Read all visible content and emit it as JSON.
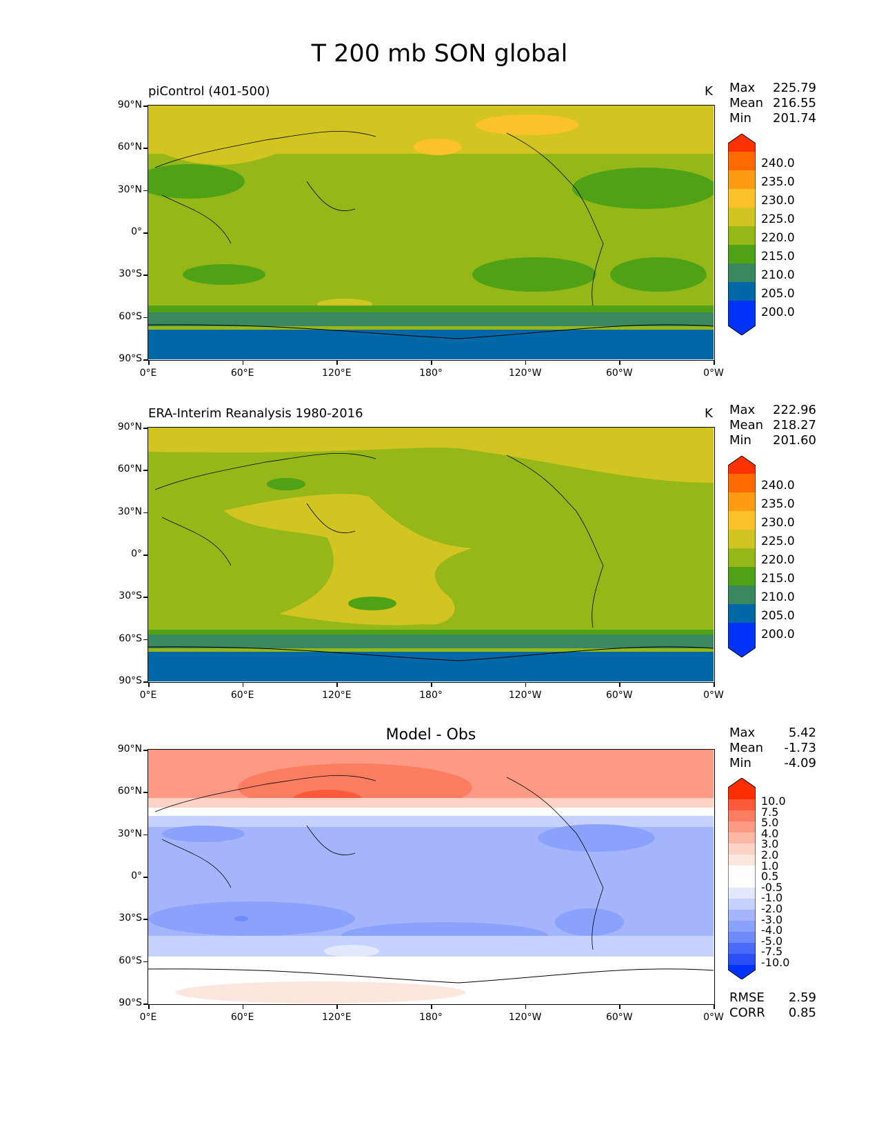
{
  "figure_title": "T 200 mb SON global",
  "lat_ticks": [
    "90°N",
    "60°N",
    "30°N",
    "0°",
    "30°S",
    "60°S",
    "90°S"
  ],
  "lon_ticks": [
    "0°E",
    "60°E",
    "120°E",
    "180°",
    "120°W",
    "60°W",
    "0°W"
  ],
  "panels": [
    {
      "id": "model",
      "title": "piControl (401-500)",
      "units": "K",
      "stats": [
        {
          "label": "Max",
          "value": "225.79"
        },
        {
          "label": "Mean",
          "value": "216.55"
        },
        {
          "label": "Min",
          "value": "201.74"
        }
      ]
    },
    {
      "id": "obs",
      "title": "ERA-Interim Reanalysis 1980-2016",
      "units": "K",
      "stats": [
        {
          "label": "Max",
          "value": "222.96"
        },
        {
          "label": "Mean",
          "value": "218.27"
        },
        {
          "label": "Min",
          "value": "201.60"
        }
      ]
    },
    {
      "id": "diff",
      "title": "Model - Obs",
      "units": "",
      "stats": [
        {
          "label": "Max",
          "value": "5.42"
        },
        {
          "label": "Mean",
          "value": "-1.73"
        },
        {
          "label": "Min",
          "value": "-4.09"
        }
      ],
      "metrics": [
        {
          "label": "RMSE",
          "value": "2.59"
        },
        {
          "label": "CORR",
          "value": "0.85"
        }
      ]
    }
  ],
  "colorbar_abs": {
    "labels": [
      "240.0",
      "235.0",
      "230.0",
      "225.0",
      "220.0",
      "215.0",
      "210.0",
      "205.0",
      "200.0"
    ],
    "colors": [
      "#fe3200",
      "#fe6a00",
      "#fe9b12",
      "#fbc22a",
      "#d2c522",
      "#95b818",
      "#4fa216",
      "#3a8760",
      "#0068a6",
      "#0032f8"
    ]
  },
  "colorbar_diff": {
    "labels": [
      "10.0",
      "7.5",
      "5.0",
      "4.0",
      "3.0",
      "2.0",
      "1.0",
      "0.5",
      "-0.5",
      "-1.0",
      "-2.0",
      "-3.0",
      "-4.0",
      "-5.0",
      "-7.5",
      "-10.0"
    ],
    "colors": [
      "#fe2e00",
      "#fd5a3c",
      "#fd7d63",
      "#fd9a85",
      "#fdb8a6",
      "#fdd3c6",
      "#fde6de",
      "#fefefe",
      "#ffffff",
      "#e2e8fe",
      "#c6d2fe",
      "#a4b5fd",
      "#8ba2fc",
      "#6f8bfa",
      "#4a6bf8",
      "#2a50f5",
      "#0032f8"
    ]
  },
  "chart_data": [
    {
      "type": "heatmap",
      "title": "piControl (401-500)",
      "units": "K",
      "levels": [
        200,
        205,
        210,
        215,
        220,
        225,
        230,
        235,
        240
      ],
      "x": [
        "0°E",
        "60°E",
        "120°E",
        "180°",
        "120°W",
        "60°W",
        "0°W"
      ],
      "y": [
        "90°N",
        "60°N",
        "30°N",
        "0°",
        "30°S",
        "60°S",
        "90°S"
      ],
      "max": 225.79,
      "mean": 216.55,
      "min": 201.74
    },
    {
      "type": "heatmap",
      "title": "ERA-Interim Reanalysis 1980-2016",
      "units": "K",
      "levels": [
        200,
        205,
        210,
        215,
        220,
        225,
        230,
        235,
        240
      ],
      "x": [
        "0°E",
        "60°E",
        "120°E",
        "180°",
        "120°W",
        "60°W",
        "0°W"
      ],
      "y": [
        "90°N",
        "60°N",
        "30°N",
        "0°",
        "30°S",
        "60°S",
        "90°S"
      ],
      "max": 222.96,
      "mean": 218.27,
      "min": 201.6
    },
    {
      "type": "heatmap",
      "title": "Model - Obs",
      "levels": [
        -10,
        -7.5,
        -5,
        -4,
        -3,
        -2,
        -1,
        -0.5,
        0.5,
        1,
        2,
        3,
        4,
        5,
        7.5,
        10
      ],
      "x": [
        "0°E",
        "60°E",
        "120°E",
        "180°",
        "120°W",
        "60°W",
        "0°W"
      ],
      "y": [
        "90°N",
        "60°N",
        "30°N",
        "0°",
        "30°S",
        "60°S",
        "90°S"
      ],
      "max": 5.42,
      "mean": -1.73,
      "min": -4.09,
      "rmse": 2.59,
      "corr": 0.85
    }
  ]
}
